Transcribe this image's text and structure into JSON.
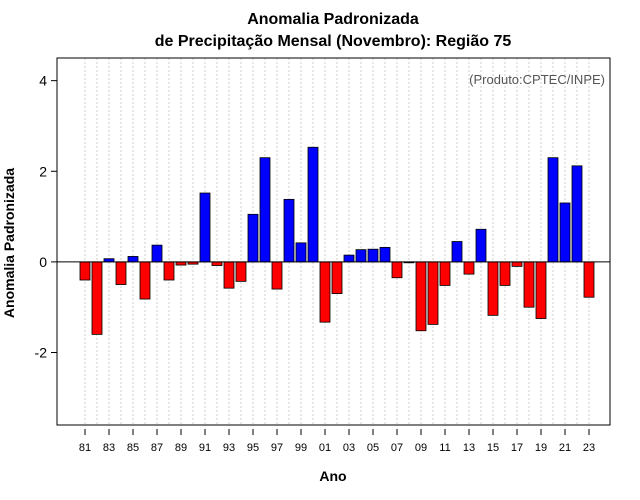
{
  "chart_data": {
    "type": "bar",
    "title_line1": "Anomalia Padronizada",
    "title_line2": "de Precipitação Mensal (Novembro): Região 75",
    "credit": "(Produto:CPTEC/INPE)",
    "xlabel": "Ano",
    "ylabel": "Anomalia Padronizada",
    "ylim": [
      -3.6,
      4.5
    ],
    "yticks": [
      "-2",
      "0",
      "2",
      "4"
    ],
    "xtick_labels": [
      "81",
      "83",
      "85",
      "87",
      "89",
      "91",
      "93",
      "95",
      "97",
      "99",
      "01",
      "03",
      "05",
      "07",
      "09",
      "11",
      "13",
      "15",
      "17",
      "19",
      "21",
      "23"
    ],
    "categories": [
      "1981",
      "1982",
      "1983",
      "1984",
      "1985",
      "1986",
      "1987",
      "1988",
      "1989",
      "1990",
      "1991",
      "1992",
      "1993",
      "1994",
      "1995",
      "1996",
      "1997",
      "1998",
      "1999",
      "2000",
      "2001",
      "2002",
      "2003",
      "2004",
      "2005",
      "2006",
      "2007",
      "2008",
      "2009",
      "2010",
      "2011",
      "2012",
      "2013",
      "2014",
      "2015",
      "2016",
      "2017",
      "2018",
      "2019",
      "2020",
      "2021",
      "2022",
      "2023"
    ],
    "values": [
      -0.4,
      -1.6,
      0.07,
      -0.5,
      0.12,
      -0.82,
      0.37,
      -0.4,
      -0.07,
      -0.05,
      1.52,
      -0.08,
      -0.58,
      -0.43,
      1.05,
      2.3,
      -0.6,
      1.38,
      0.42,
      2.53,
      -1.33,
      -0.7,
      0.15,
      0.27,
      0.28,
      0.32,
      -0.35,
      -0.02,
      -1.52,
      -1.38,
      -0.52,
      0.45,
      -0.27,
      0.72,
      -1.18,
      -0.52,
      -0.1,
      -1.0,
      -1.25,
      2.3,
      1.3,
      2.12,
      -0.78
    ],
    "positive_color": "#0000ff",
    "negative_color": "#ff0000",
    "grid": true
  }
}
